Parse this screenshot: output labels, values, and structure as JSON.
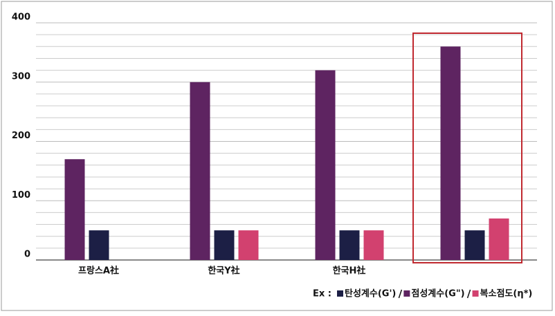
{
  "chart_data": {
    "type": "bar",
    "categories": [
      "프랑스A社",
      "한국Y社",
      "한국H社",
      null
    ],
    "series": [
      {
        "name": "탄성계수(G')",
        "color": "#1c1f45",
        "values": [
          50,
          50,
          50,
          50
        ]
      },
      {
        "name": "점성계수(G\")",
        "color": "#5e2461",
        "values": [
          170,
          300,
          320,
          360
        ]
      },
      {
        "name": "복소점도(η*)",
        "color": "#d2416f",
        "values": [
          null,
          50,
          50,
          70
        ]
      }
    ],
    "legend_prefix": "Ex :",
    "ylim": [
      0,
      400
    ],
    "yticks": [
      0,
      100,
      200,
      300,
      400
    ],
    "minor_yticks": [
      20,
      40,
      60,
      80,
      120,
      140,
      160,
      180,
      220,
      240,
      260,
      280,
      320,
      340,
      360,
      380
    ],
    "grid": true
  }
}
